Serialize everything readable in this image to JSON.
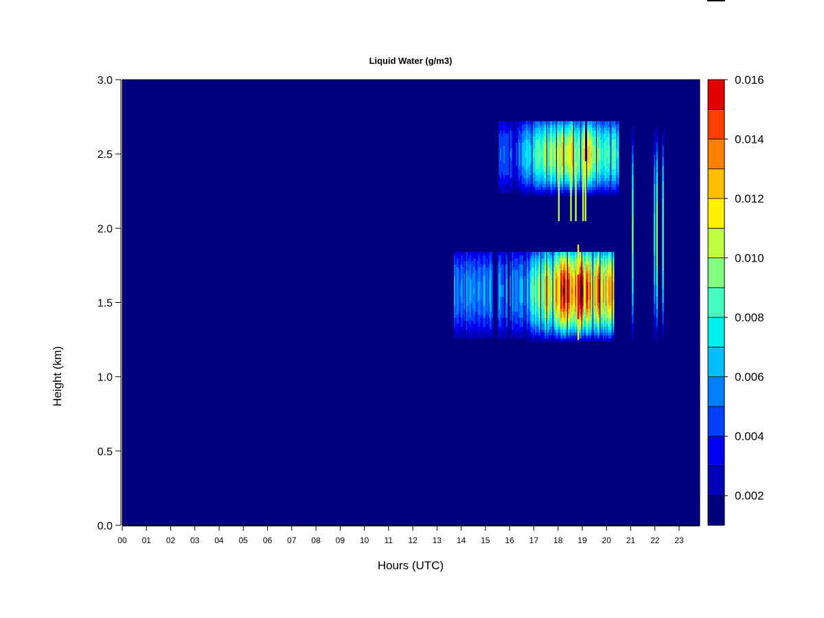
{
  "chart_data": {
    "type": "heatmap",
    "title": "Liquid Water (g/m3)",
    "xlabel": "Hours (UTC)",
    "ylabel": "Height (km)",
    "x_tick_labels": [
      "00",
      "01",
      "02",
      "03",
      "04",
      "05",
      "06",
      "07",
      "08",
      "09",
      "10",
      "11",
      "12",
      "13",
      "14",
      "15",
      "16",
      "17",
      "18",
      "19",
      "20",
      "21",
      "22",
      "23"
    ],
    "y_ticks": [
      0.0,
      0.5,
      1.0,
      1.5,
      2.0,
      2.5,
      3.0
    ],
    "y_tick_labels": [
      "0.0",
      "0.5",
      "1.0",
      "1.5",
      "2.0",
      "2.5",
      "3.0"
    ],
    "xlim": [
      0,
      23.85
    ],
    "ylim": [
      0,
      3.0
    ],
    "background_value": 0.001,
    "colorbar": {
      "levels": [
        0.001,
        0.002,
        0.003,
        0.004,
        0.005,
        0.006,
        0.007,
        0.008,
        0.009,
        0.01,
        0.011,
        0.012,
        0.013,
        0.014,
        0.015,
        0.016
      ],
      "colors": [
        "#00007F",
        "#0000B8",
        "#0000F0",
        "#0040FF",
        "#0080FF",
        "#00BFFF",
        "#00F0F0",
        "#40FFBF",
        "#80FF80",
        "#BFFF40",
        "#FFF000",
        "#FFBF00",
        "#FF8000",
        "#FF4000",
        "#E00000",
        "#800000"
      ],
      "tick_values": [
        0.002,
        0.004,
        0.006,
        0.008,
        0.01,
        0.012,
        0.014,
        0.016
      ],
      "tick_labels": [
        "0.002",
        "0.004",
        "0.006",
        "0.008",
        "0.010",
        "0.012",
        "0.014",
        "0.016"
      ]
    },
    "cloud_layers": [
      {
        "name": "upper layer",
        "x_range": [
          15.5,
          20.5
        ],
        "height_range": [
          2.2,
          2.72
        ],
        "center_height": 2.5,
        "peak_value": 0.0115,
        "core_x_range": [
          18.0,
          19.3
        ]
      },
      {
        "name": "lower layer",
        "x_range": [
          13.7,
          20.3
        ],
        "height_range": [
          1.22,
          1.85
        ],
        "center_height": 1.58,
        "peak_value": 0.0155,
        "core_x_range": [
          18.3,
          19.3
        ]
      },
      {
        "name": "isolated patches",
        "x_range": [
          21.0,
          22.4
        ],
        "height_range": [
          1.2,
          2.72
        ],
        "peak_value": 0.009
      }
    ]
  }
}
